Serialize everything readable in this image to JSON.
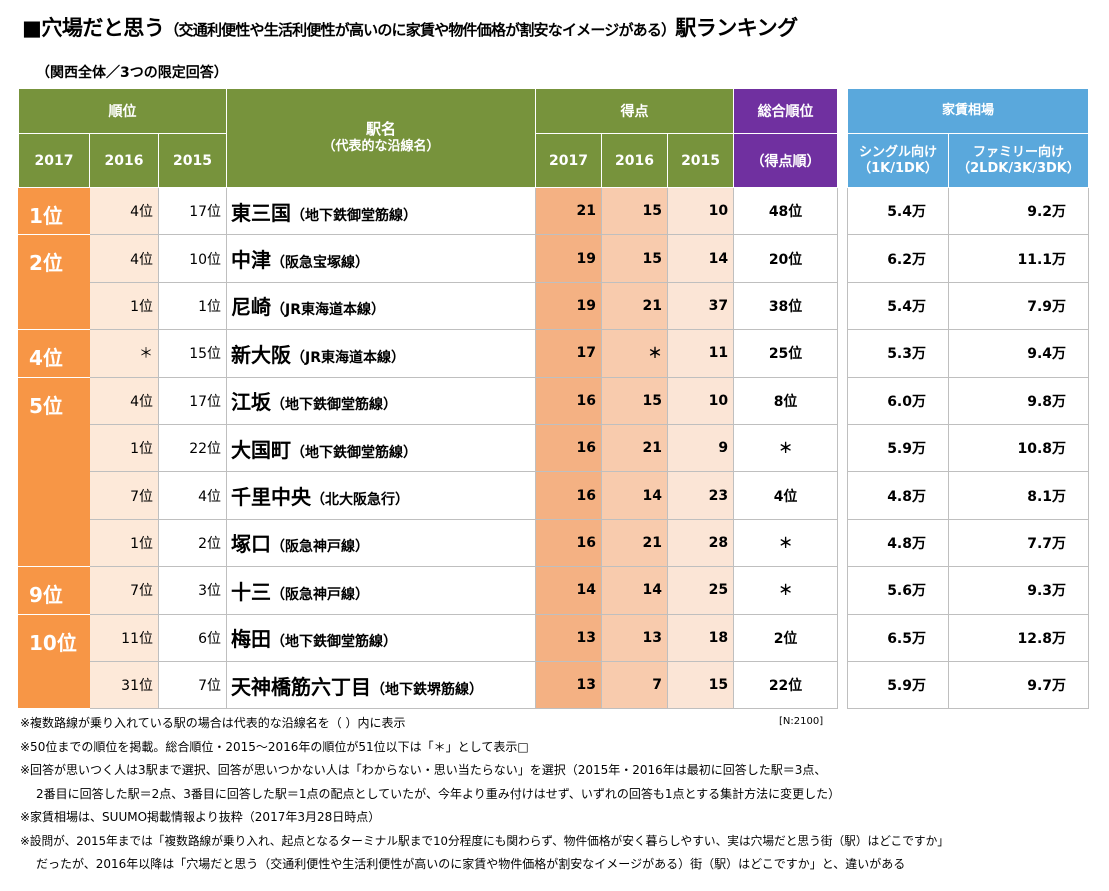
{
  "title": {
    "prefix": "■穴場だと思う",
    "paren": "（交通利便性や生活利便性が高いのに家賃や物件価格が割安なイメージがある）",
    "suffix": "駅ランキング"
  },
  "subtitle": "（関西全体／3つの限定回答）",
  "headers": {
    "rank": "順位",
    "station_name": "駅名",
    "station_sub": "（代表的な沿線名）",
    "score": "得点",
    "overall": "総合順位",
    "overall_sub": "（得点順）",
    "rent": "家賃相場",
    "single": "シングル向け（1K/1DK）",
    "family": "ファミリー向け（2LDK/3K/3DK）",
    "years": [
      "2017",
      "2016",
      "2015"
    ]
  },
  "rows": [
    {
      "rank2017": "1位",
      "rank2016": "4位",
      "rank2015": "17位",
      "station": "東三国",
      "line": "（地下鉄御堂筋線）",
      "score2017": "21",
      "score2016": "15",
      "score2015": "10",
      "overall": "48位",
      "single": "5.4万",
      "family": "9.2万"
    },
    {
      "rank2017": "2位",
      "rank2016": "4位",
      "rank2015": "10位",
      "station": "中津",
      "line": "（阪急宝塚線）",
      "score2017": "19",
      "score2016": "15",
      "score2015": "14",
      "overall": "20位",
      "single": "6.2万",
      "family": "11.1万"
    },
    {
      "rank2017": "",
      "rank2016": "1位",
      "rank2015": "1位",
      "station": "尼崎",
      "line": "（JR東海道本線）",
      "score2017": "19",
      "score2016": "21",
      "score2015": "37",
      "overall": "38位",
      "single": "5.4万",
      "family": "7.9万"
    },
    {
      "rank2017": "4位",
      "rank2016": "＊",
      "rank2015": "15位",
      "station": "新大阪",
      "line": "（JR東海道本線）",
      "score2017": "17",
      "score2016": "＊",
      "score2015": "11",
      "overall": "25位",
      "single": "5.3万",
      "family": "9.4万"
    },
    {
      "rank2017": "5位",
      "rank2016": "4位",
      "rank2015": "17位",
      "station": "江坂",
      "line": "（地下鉄御堂筋線）",
      "score2017": "16",
      "score2016": "15",
      "score2015": "10",
      "overall": "8位",
      "single": "6.0万",
      "family": "9.8万"
    },
    {
      "rank2017": "",
      "rank2016": "1位",
      "rank2015": "22位",
      "station": "大国町",
      "line": "（地下鉄御堂筋線）",
      "score2017": "16",
      "score2016": "21",
      "score2015": "9",
      "overall": "＊",
      "single": "5.9万",
      "family": "10.8万"
    },
    {
      "rank2017": "",
      "rank2016": "7位",
      "rank2015": "4位",
      "station": "千里中央",
      "line": "（北大阪急行）",
      "score2017": "16",
      "score2016": "14",
      "score2015": "23",
      "overall": "4位",
      "single": "4.8万",
      "family": "8.1万"
    },
    {
      "rank2017": "",
      "rank2016": "1位",
      "rank2015": "2位",
      "station": "塚口",
      "line": "（阪急神戸線）",
      "score2017": "16",
      "score2016": "21",
      "score2015": "28",
      "overall": "＊",
      "single": "4.8万",
      "family": "7.7万"
    },
    {
      "rank2017": "9位",
      "rank2016": "7位",
      "rank2015": "3位",
      "station": "十三",
      "line": "（阪急神戸線）",
      "score2017": "14",
      "score2016": "14",
      "score2015": "25",
      "overall": "＊",
      "single": "5.6万",
      "family": "9.3万"
    },
    {
      "rank2017": "10位",
      "rank2016": "11位",
      "rank2015": "6位",
      "station": "梅田",
      "line": "（地下鉄御堂筋線）",
      "score2017": "13",
      "score2016": "13",
      "score2015": "18",
      "overall": "2位",
      "single": "6.5万",
      "family": "12.8万"
    },
    {
      "rank2017": "",
      "rank2016": "31位",
      "rank2015": "7位",
      "station": "天神橋筋六丁目",
      "line": "（地下鉄堺筋線）",
      "score2017": "13",
      "score2016": "7",
      "score2015": "15",
      "overall": "22位",
      "single": "5.9万",
      "family": "9.7万"
    }
  ],
  "sample_size": "[N:2100]",
  "notes": [
    "※複数路線が乗り入れている駅の場合は代表的な沿線名を（ ）内に表示",
    "※50位までの順位を掲載。総合順位・2015～2016年の順位が51位以下は「＊」として表示□",
    "※回答が思いつく人は3駅まで選択、回答が思いつかない人は「わからない・思い当たらない」を選択（2015年・2016年は最初に回答した駅＝3点、",
    "2番目に回答した駅＝2点、3番目に回答した駅＝1点の配点としていたが、今年より重み付けはせず、いずれの回答も1点とする集計方法に変更した）",
    "※家賃相場は、SUUMO掲載情報より抜粋（2017年3月28日時点）",
    "※設問が、2015年までは「複数路線が乗り入れ、起点となるターミナル駅まで10分程度にも関わらず、物件価格が安く暮らしやすい、実は穴場だと思う街（駅）はどこですか」",
    "だったが、2016年以降は「穴場だと思う（交通利便性や生活利便性が高いのに家賃や物件価格が割安なイメージがある）街（駅）はどこですか」と、違いがある"
  ],
  "colors": {
    "header_green": "#77933c",
    "header_purple": "#7030a0",
    "header_blue": "#5aa8dc",
    "rank_orange": "#f79646"
  }
}
